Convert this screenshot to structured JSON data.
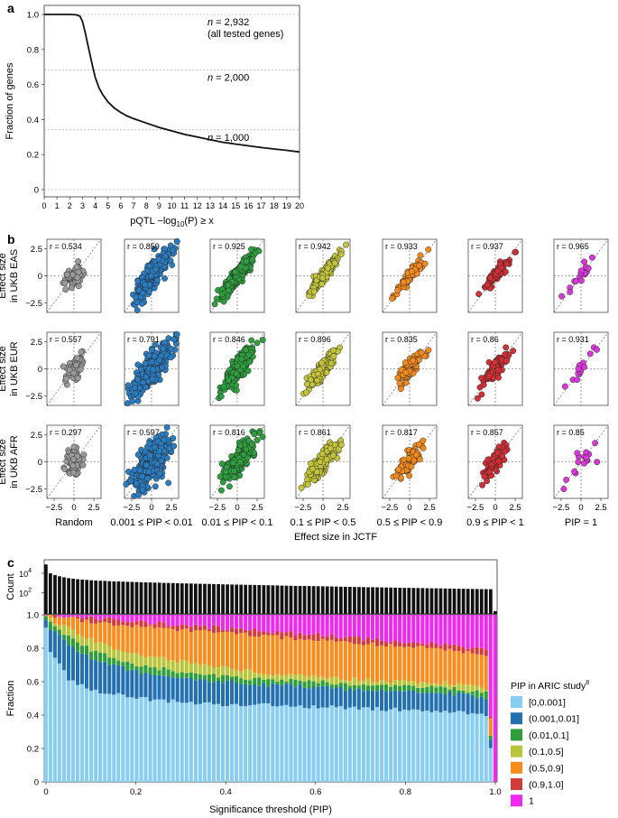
{
  "panels": {
    "a": "a",
    "b": "b",
    "c": "c"
  },
  "chart_data": [
    {
      "panel": "a",
      "type": "line",
      "xlabel_pre": "pQTL −log",
      "xlabel_sub": "10",
      "xlabel_post": "(P) ≥ x",
      "ylabel": "Fraction of genes",
      "xlim": [
        0,
        20
      ],
      "ylim": [
        0,
        1
      ],
      "xticks": [
        0,
        1,
        2,
        3,
        4,
        5,
        6,
        7,
        8,
        9,
        10,
        11,
        12,
        13,
        14,
        15,
        16,
        17,
        18,
        19,
        20
      ],
      "yticks": [
        0,
        0.2,
        0.4,
        0.6,
        0.8,
        1.0
      ],
      "ytick_labels": [
        "0",
        "0.2",
        "0.4",
        "0.6",
        "0.8",
        "1.0"
      ],
      "x": [
        0,
        1,
        2,
        2.5,
        2.8,
        3,
        3.2,
        3.5,
        3.8,
        4,
        4.3,
        4.6,
        5,
        5.5,
        6,
        6.5,
        7,
        8,
        9,
        10,
        11,
        12,
        13,
        14,
        15,
        16,
        17,
        18,
        19,
        20
      ],
      "y": [
        1.0,
        1.0,
        1.0,
        0.998,
        0.99,
        0.96,
        0.9,
        0.8,
        0.7,
        0.64,
        0.58,
        0.54,
        0.5,
        0.465,
        0.44,
        0.42,
        0.405,
        0.38,
        0.355,
        0.335,
        0.315,
        0.3,
        0.285,
        0.27,
        0.26,
        0.25,
        0.24,
        0.232,
        0.224,
        0.215
      ],
      "reference_lines": [
        {
          "y": 1.0,
          "label_n": "n",
          "label_rest": " = 2,932",
          "label_line2": "(all tested genes)"
        },
        {
          "y": 0.682,
          "label_n": "n",
          "label_rest": " = 2,000",
          "label_line2": ""
        },
        {
          "y": 0.341,
          "label_n": "n",
          "label_rest": " = 1,000",
          "label_line2": ""
        },
        {
          "y": 0.0,
          "label_n": "",
          "label_rest": "",
          "label_line2": ""
        }
      ]
    },
    {
      "panel": "b",
      "type": "scatter",
      "xlabel": "Effect size in JCTF",
      "xticks": [
        -2.5,
        0,
        2.5
      ],
      "xtick_labels": [
        "−2.5",
        "0",
        "2.5"
      ],
      "yticks": [
        -2.5,
        0,
        2.5
      ],
      "ytick_labels": [
        "−2.5",
        "0",
        "2.5"
      ],
      "lim": [
        -3.4,
        3.4
      ],
      "rows": [
        {
          "line1": "Effect size",
          "line2": "in UKB EAS"
        },
        {
          "line1": "Effect size",
          "line2": "in UKB EUR"
        },
        {
          "line1": "Effect size",
          "line2": "in UKB AFR"
        }
      ],
      "columns": [
        {
          "label": "Random",
          "color": "#9a9a9a",
          "density": 60,
          "spread": 0.6
        },
        {
          "label": "0.001 ≤ PIP < 0.01",
          "color": "#2b7bbf",
          "density": 320,
          "spread": 1.1
        },
        {
          "label": "0.01 ≤ PIP < 0.1",
          "color": "#2e9e3e",
          "density": 240,
          "spread": 1.0
        },
        {
          "label": "0.1 ≤ PIP < 0.5",
          "color": "#c4c43c",
          "density": 160,
          "spread": 0.9
        },
        {
          "label": "0.5 ≤ PIP < 0.9",
          "color": "#f28a1e",
          "density": 80,
          "spread": 0.8
        },
        {
          "label": "0.9 ≤ PIP < 1",
          "color": "#cf3035",
          "density": 70,
          "spread": 0.9
        },
        {
          "label": "PIP = 1",
          "color": "#d838d8",
          "density": 16,
          "spread": 1.1
        }
      ],
      "r_values": [
        [
          "r = 0.534",
          "r = 0.859",
          "r = 0.925",
          "r = 0.942",
          "r = 0.933",
          "r = 0.937",
          "r = 0.965"
        ],
        [
          "r = 0.557",
          "r = 0.791",
          "r = 0.846",
          "r = 0.896",
          "r = 0.835",
          "r = 0.86",
          "r = 0.931"
        ],
        [
          "r = 0.297",
          "r = 0.597",
          "r = 0.816",
          "r = 0.861",
          "r = 0.817",
          "r = 0.857",
          "r = 0.85"
        ]
      ]
    },
    {
      "panel": "c",
      "type": "bar",
      "xlabel": "Significance threshold (PIP)",
      "count_ylabel": "Count",
      "count_yticks": [
        {
          "base": "10",
          "exp": "2"
        },
        {
          "base": "10",
          "exp": "4"
        }
      ],
      "fraction_ylabel": "Fraction",
      "xticks": [
        0,
        0.2,
        0.4,
        0.6,
        0.8,
        1.0
      ],
      "xtick_labels": [
        "0",
        "0.2",
        "0.4",
        "0.6",
        "0.8",
        "1.0"
      ],
      "yticks": [
        0,
        0.2,
        0.4,
        0.6,
        0.8,
        1.0
      ],
      "ytick_labels": [
        "0",
        "0.2",
        "0.4",
        "0.6",
        "0.8",
        "1.0"
      ],
      "thresholds": [
        0,
        0.01,
        0.98,
        1.0
      ],
      "log_counts": [
        4.9,
        4.2,
        3.9,
        3.6,
        1.3,
        0.1
      ],
      "legend_title": "PIP in ARIC study",
      "legend_title_sup": "8",
      "categories": [
        {
          "label": "[0,0.001]",
          "color": "#89cdf1"
        },
        {
          "label": "(0.001,0.01]",
          "color": "#2270b0"
        },
        {
          "label": "(0.01,0.1]",
          "color": "#2f9e3a"
        },
        {
          "label": "(0.1,0.5]",
          "color": "#b8c43a"
        },
        {
          "label": "(0.5,0.9]",
          "color": "#f88c1c"
        },
        {
          "label": "(0.9,1.0]",
          "color": "#d13b3b"
        },
        {
          "label": "1",
          "color": "#ee2aef"
        }
      ],
      "cumulative_at_threshold": {
        "x": [
          0,
          0.01,
          0.05,
          0.1,
          0.2,
          0.3,
          0.4,
          0.5,
          0.6,
          0.7,
          0.8,
          0.9,
          0.98,
          1.0
        ],
        "bounds": [
          [
            0.93,
            0.78,
            0.62,
            0.55,
            0.5,
            0.48,
            0.46,
            0.46,
            0.45,
            0.44,
            0.43,
            0.42,
            0.4,
            0.0
          ],
          [
            0.98,
            0.92,
            0.82,
            0.74,
            0.66,
            0.62,
            0.6,
            0.58,
            0.57,
            0.55,
            0.54,
            0.53,
            0.5,
            0.0
          ],
          [
            0.99,
            0.95,
            0.87,
            0.79,
            0.7,
            0.66,
            0.63,
            0.61,
            0.6,
            0.58,
            0.57,
            0.56,
            0.53,
            0.0
          ],
          [
            1.0,
            0.97,
            0.92,
            0.85,
            0.76,
            0.72,
            0.68,
            0.65,
            0.63,
            0.61,
            0.6,
            0.59,
            0.56,
            0.0
          ],
          [
            1.0,
            0.995,
            0.98,
            0.96,
            0.93,
            0.91,
            0.89,
            0.87,
            0.85,
            0.83,
            0.81,
            0.79,
            0.76,
            0.0
          ],
          [
            1.0,
            0.998,
            0.99,
            0.98,
            0.96,
            0.94,
            0.92,
            0.9,
            0.88,
            0.86,
            0.84,
            0.82,
            0.79,
            0.0
          ],
          [
            1.0,
            1.0,
            1.0,
            1.0,
            1.0,
            1.0,
            1.0,
            1.0,
            1.0,
            1.0,
            1.0,
            1.0,
            1.0,
            1.0
          ]
        ]
      }
    }
  ]
}
